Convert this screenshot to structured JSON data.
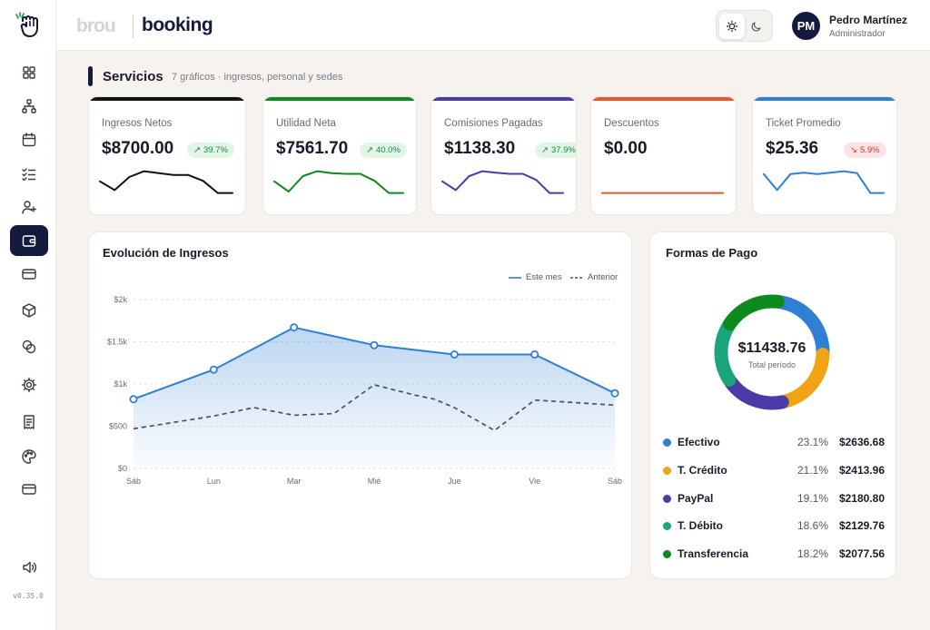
{
  "header": {
    "brand_left": "brou",
    "brand_right": "booking",
    "user_initials": "PM",
    "user_name": "Pedro Martínez",
    "user_role": "Administrador"
  },
  "sidebar": {
    "version": "v0.35.0",
    "items": [
      {
        "icon": "grid-icon"
      },
      {
        "icon": "sitemap-icon"
      },
      {
        "icon": "calendar-icon"
      },
      {
        "icon": "checklist-icon"
      },
      {
        "icon": "add-user-icon"
      },
      {
        "icon": "wallet-icon",
        "active": true
      },
      {
        "icon": "credit-card-icon"
      },
      {
        "icon": "box-icon"
      },
      {
        "icon": "coins-icon"
      },
      {
        "icon": "gear-icon"
      },
      {
        "icon": "receipt-icon"
      },
      {
        "icon": "palette-icon"
      },
      {
        "icon": "card-icon"
      },
      {
        "icon": "speaker-icon"
      }
    ]
  },
  "section": {
    "title": "Servicios",
    "subtitle": "7 gráficos · ingresos, personal y sedes"
  },
  "kpis": [
    {
      "label": "Ingresos Netos",
      "value": "$8700.00",
      "change": "39.7%",
      "direction": "up",
      "color": "#111111",
      "spark": [
        0.6,
        0.3,
        0.75,
        0.95,
        0.88,
        0.82,
        0.82,
        0.62,
        0.2,
        0.2
      ]
    },
    {
      "label": "Utilidad Neta",
      "value": "$7561.70",
      "change": "40.0%",
      "direction": "up",
      "color": "#0d8a1e",
      "spark": [
        0.6,
        0.25,
        0.78,
        0.95,
        0.88,
        0.86,
        0.86,
        0.62,
        0.2,
        0.2
      ]
    },
    {
      "label": "Comisiones Pagadas",
      "value": "$1138.30",
      "change": "37.9%",
      "direction": "up",
      "color": "#4b3aa8",
      "spark": [
        0.6,
        0.3,
        0.78,
        0.95,
        0.9,
        0.86,
        0.86,
        0.65,
        0.2,
        0.2
      ]
    },
    {
      "label": "Descuentos",
      "value": "$0.00",
      "change": "",
      "direction": "none",
      "color": "#e8562a",
      "spark": [
        0.2,
        0.2,
        0.2,
        0.2,
        0.2,
        0.2,
        0.2,
        0.2,
        0.2,
        0.2
      ]
    },
    {
      "label": "Ticket Promedio",
      "value": "$25.36",
      "change": "5.9%",
      "direction": "down",
      "color": "#2f7fd4",
      "spark": [
        0.85,
        0.3,
        0.85,
        0.9,
        0.85,
        0.9,
        0.95,
        0.88,
        0.2,
        0.2
      ]
    }
  ],
  "revenue_chart": {
    "title": "Evolución de Ingresos",
    "legend_current": "Este mes",
    "legend_previous": "Anterior",
    "color_current": "#2f7fd4",
    "color_previous": "#4a5068"
  },
  "payments": {
    "title": "Formas de Pago",
    "total": "$11438.76",
    "total_label": "Total período",
    "items": [
      {
        "name": "Efectivo",
        "pct": "23.1%",
        "amount": "$2636.68",
        "color": "#2f7fd4",
        "share": 23.1
      },
      {
        "name": "T. Crédito",
        "pct": "21.1%",
        "amount": "$2413.96",
        "color": "#f0a414",
        "share": 21.1
      },
      {
        "name": "PayPal",
        "pct": "19.1%",
        "amount": "$2180.80",
        "color": "#4b3aa8",
        "share": 19.1
      },
      {
        "name": "T. Débito",
        "pct": "18.6%",
        "amount": "$2129.76",
        "color": "#1aa57f",
        "share": 18.6
      },
      {
        "name": "Transferencia",
        "pct": "18.2%",
        "amount": "$2077.56",
        "color": "#0d8a1e",
        "share": 18.2
      }
    ]
  },
  "chart_data": {
    "type": "area",
    "title": "Evolución de Ingresos",
    "categories": [
      "Sáb",
      "Lun",
      "Mar",
      "Mié",
      "Jue",
      "Vie",
      "Sáb"
    ],
    "y_tick_labels": [
      "$0",
      "$500",
      "$1k",
      "$1.5k",
      "$2k"
    ],
    "ylim": [
      0,
      2000
    ],
    "grid": true,
    "legend_position": "top-right",
    "series": [
      {
        "name": "Este mes",
        "style": "solid",
        "markers": true,
        "values": [
          820,
          1170,
          1670,
          1460,
          1350,
          1350,
          890
        ]
      },
      {
        "name": "Anterior",
        "style": "dashed",
        "markers": false,
        "x": [
          0,
          1,
          1.5,
          2,
          2.5,
          3,
          3.5,
          3.75,
          4,
          4.5,
          5,
          5.5,
          6
        ],
        "values": [
          470,
          620,
          720,
          630,
          650,
          990,
          870,
          820,
          720,
          450,
          810,
          780,
          750
        ]
      }
    ]
  }
}
